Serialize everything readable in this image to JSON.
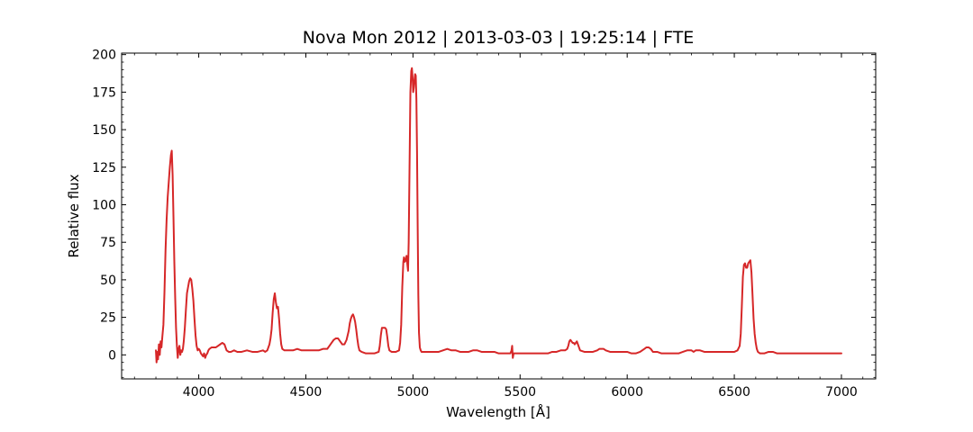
{
  "chart_data": {
    "type": "line",
    "title": "Nova Mon 2012 | 2013-03-03 | 19:25:14 | FTE",
    "xlabel": "Wavelength [Å]",
    "ylabel": "Relative flux",
    "xlim": [
      3640,
      7160
    ],
    "ylim": [
      -16,
      201
    ],
    "xticks": [
      4000,
      4500,
      5000,
      5500,
      6000,
      6500,
      7000
    ],
    "yticks": [
      0,
      25,
      50,
      75,
      100,
      125,
      150,
      175,
      200
    ],
    "x_minor_step": 100,
    "y_minor_step": 5,
    "grid": false,
    "ticks_direction": "in",
    "series": [
      {
        "color": "#d62728",
        "points": [
          [
            3800,
            3
          ],
          [
            3803,
            -5
          ],
          [
            3806,
            2
          ],
          [
            3810,
            -3
          ],
          [
            3814,
            7
          ],
          [
            3818,
            0
          ],
          [
            3822,
            9
          ],
          [
            3826,
            5
          ],
          [
            3830,
            12
          ],
          [
            3835,
            20
          ],
          [
            3840,
            42
          ],
          [
            3845,
            70
          ],
          [
            3850,
            90
          ],
          [
            3855,
            105
          ],
          [
            3860,
            115
          ],
          [
            3865,
            125
          ],
          [
            3870,
            133
          ],
          [
            3874,
            136
          ],
          [
            3878,
            120
          ],
          [
            3882,
            92
          ],
          [
            3886,
            62
          ],
          [
            3890,
            38
          ],
          [
            3894,
            18
          ],
          [
            3898,
            6
          ],
          [
            3902,
            -2
          ],
          [
            3906,
            4
          ],
          [
            3910,
            6
          ],
          [
            3914,
            0
          ],
          [
            3918,
            3
          ],
          [
            3922,
            2
          ],
          [
            3926,
            4
          ],
          [
            3930,
            9
          ],
          [
            3935,
            18
          ],
          [
            3940,
            30
          ],
          [
            3945,
            41
          ],
          [
            3950,
            45
          ],
          [
            3955,
            49
          ],
          [
            3960,
            51
          ],
          [
            3965,
            50
          ],
          [
            3970,
            44
          ],
          [
            3975,
            36
          ],
          [
            3980,
            24
          ],
          [
            3985,
            13
          ],
          [
            3990,
            6
          ],
          [
            3995,
            3
          ],
          [
            4000,
            4
          ],
          [
            4005,
            3
          ],
          [
            4010,
            1
          ],
          [
            4015,
            0
          ],
          [
            4020,
            -1
          ],
          [
            4025,
            1
          ],
          [
            4030,
            -2
          ],
          [
            4035,
            0
          ],
          [
            4040,
            1
          ],
          [
            4045,
            3
          ],
          [
            4050,
            4
          ],
          [
            4060,
            5
          ],
          [
            4070,
            5
          ],
          [
            4080,
            5
          ],
          [
            4090,
            6
          ],
          [
            4100,
            7
          ],
          [
            4110,
            8
          ],
          [
            4120,
            7
          ],
          [
            4130,
            3
          ],
          [
            4140,
            2
          ],
          [
            4150,
            2
          ],
          [
            4165,
            3
          ],
          [
            4180,
            2
          ],
          [
            4200,
            2
          ],
          [
            4225,
            3
          ],
          [
            4250,
            2
          ],
          [
            4275,
            2
          ],
          [
            4300,
            3
          ],
          [
            4310,
            2
          ],
          [
            4320,
            3
          ],
          [
            4330,
            7
          ],
          [
            4335,
            11
          ],
          [
            4340,
            17
          ],
          [
            4345,
            28
          ],
          [
            4350,
            37
          ],
          [
            4355,
            41
          ],
          [
            4360,
            35
          ],
          [
            4365,
            31
          ],
          [
            4370,
            32
          ],
          [
            4375,
            24
          ],
          [
            4380,
            14
          ],
          [
            4385,
            7
          ],
          [
            4390,
            4
          ],
          [
            4400,
            3
          ],
          [
            4420,
            3
          ],
          [
            4440,
            3
          ],
          [
            4460,
            4
          ],
          [
            4480,
            3
          ],
          [
            4500,
            3
          ],
          [
            4520,
            3
          ],
          [
            4540,
            3
          ],
          [
            4560,
            3
          ],
          [
            4580,
            4
          ],
          [
            4600,
            4
          ],
          [
            4610,
            6
          ],
          [
            4620,
            8
          ],
          [
            4630,
            10
          ],
          [
            4640,
            11
          ],
          [
            4650,
            11
          ],
          [
            4660,
            9
          ],
          [
            4670,
            7
          ],
          [
            4680,
            7
          ],
          [
            4690,
            10
          ],
          [
            4700,
            16
          ],
          [
            4705,
            21
          ],
          [
            4710,
            24
          ],
          [
            4715,
            26
          ],
          [
            4720,
            27
          ],
          [
            4725,
            25
          ],
          [
            4730,
            22
          ],
          [
            4735,
            17
          ],
          [
            4740,
            11
          ],
          [
            4745,
            6
          ],
          [
            4750,
            3
          ],
          [
            4760,
            2
          ],
          [
            4780,
            1
          ],
          [
            4800,
            1
          ],
          [
            4820,
            1
          ],
          [
            4840,
            2
          ],
          [
            4845,
            6
          ],
          [
            4850,
            13
          ],
          [
            4855,
            18
          ],
          [
            4860,
            18
          ],
          [
            4870,
            18
          ],
          [
            4875,
            17
          ],
          [
            4880,
            12
          ],
          [
            4885,
            6
          ],
          [
            4890,
            3
          ],
          [
            4900,
            2
          ],
          [
            4920,
            2
          ],
          [
            4935,
            3
          ],
          [
            4940,
            8
          ],
          [
            4945,
            20
          ],
          [
            4950,
            45
          ],
          [
            4955,
            62
          ],
          [
            4958,
            65
          ],
          [
            4962,
            62
          ],
          [
            4966,
            63
          ],
          [
            4970,
            66
          ],
          [
            4974,
            60
          ],
          [
            4977,
            56
          ],
          [
            4980,
            75
          ],
          [
            4984,
            125
          ],
          [
            4988,
            175
          ],
          [
            4992,
            189
          ],
          [
            4995,
            191
          ],
          [
            4998,
            185
          ],
          [
            5001,
            175
          ],
          [
            5004,
            178
          ],
          [
            5007,
            183
          ],
          [
            5010,
            187
          ],
          [
            5013,
            186
          ],
          [
            5016,
            170
          ],
          [
            5019,
            135
          ],
          [
            5022,
            85
          ],
          [
            5025,
            40
          ],
          [
            5028,
            15
          ],
          [
            5032,
            5
          ],
          [
            5036,
            3
          ],
          [
            5040,
            2
          ],
          [
            5060,
            2
          ],
          [
            5080,
            2
          ],
          [
            5100,
            2
          ],
          [
            5120,
            2
          ],
          [
            5140,
            3
          ],
          [
            5160,
            4
          ],
          [
            5180,
            3
          ],
          [
            5200,
            3
          ],
          [
            5220,
            2
          ],
          [
            5240,
            2
          ],
          [
            5260,
            2
          ],
          [
            5280,
            3
          ],
          [
            5300,
            3
          ],
          [
            5320,
            2
          ],
          [
            5340,
            2
          ],
          [
            5360,
            2
          ],
          [
            5380,
            2
          ],
          [
            5400,
            1
          ],
          [
            5420,
            1
          ],
          [
            5440,
            1
          ],
          [
            5455,
            1
          ],
          [
            5460,
            3
          ],
          [
            5463,
            6
          ],
          [
            5466,
            -2
          ],
          [
            5470,
            1
          ],
          [
            5490,
            1
          ],
          [
            5510,
            1
          ],
          [
            5530,
            1
          ],
          [
            5550,
            1
          ],
          [
            5570,
            1
          ],
          [
            5590,
            1
          ],
          [
            5610,
            1
          ],
          [
            5630,
            1
          ],
          [
            5650,
            2
          ],
          [
            5670,
            2
          ],
          [
            5690,
            3
          ],
          [
            5710,
            3
          ],
          [
            5720,
            4
          ],
          [
            5725,
            6
          ],
          [
            5730,
            9
          ],
          [
            5735,
            10
          ],
          [
            5740,
            9
          ],
          [
            5745,
            8
          ],
          [
            5750,
            8
          ],
          [
            5755,
            7
          ],
          [
            5760,
            8
          ],
          [
            5765,
            9
          ],
          [
            5770,
            7
          ],
          [
            5775,
            5
          ],
          [
            5780,
            3
          ],
          [
            5800,
            2
          ],
          [
            5820,
            2
          ],
          [
            5840,
            2
          ],
          [
            5860,
            3
          ],
          [
            5870,
            4
          ],
          [
            5880,
            4
          ],
          [
            5890,
            4
          ],
          [
            5900,
            3
          ],
          [
            5920,
            2
          ],
          [
            5940,
            2
          ],
          [
            5960,
            2
          ],
          [
            5980,
            2
          ],
          [
            6000,
            2
          ],
          [
            6020,
            1
          ],
          [
            6040,
            1
          ],
          [
            6060,
            2
          ],
          [
            6070,
            3
          ],
          [
            6080,
            4
          ],
          [
            6090,
            5
          ],
          [
            6100,
            5
          ],
          [
            6110,
            4
          ],
          [
            6120,
            2
          ],
          [
            6140,
            2
          ],
          [
            6160,
            1
          ],
          [
            6180,
            1
          ],
          [
            6200,
            1
          ],
          [
            6220,
            1
          ],
          [
            6240,
            1
          ],
          [
            6260,
            2
          ],
          [
            6280,
            3
          ],
          [
            6300,
            3
          ],
          [
            6310,
            2
          ],
          [
            6320,
            3
          ],
          [
            6340,
            3
          ],
          [
            6360,
            2
          ],
          [
            6380,
            2
          ],
          [
            6400,
            2
          ],
          [
            6420,
            2
          ],
          [
            6440,
            2
          ],
          [
            6460,
            2
          ],
          [
            6480,
            2
          ],
          [
            6500,
            2
          ],
          [
            6515,
            3
          ],
          [
            6525,
            6
          ],
          [
            6530,
            14
          ],
          [
            6535,
            32
          ],
          [
            6540,
            52
          ],
          [
            6545,
            60
          ],
          [
            6550,
            61
          ],
          [
            6555,
            58
          ],
          [
            6560,
            58
          ],
          [
            6565,
            61
          ],
          [
            6570,
            62
          ],
          [
            6575,
            63
          ],
          [
            6580,
            55
          ],
          [
            6585,
            40
          ],
          [
            6590,
            24
          ],
          [
            6595,
            14
          ],
          [
            6600,
            8
          ],
          [
            6605,
            4
          ],
          [
            6610,
            2
          ],
          [
            6620,
            1
          ],
          [
            6640,
            1
          ],
          [
            6660,
            2
          ],
          [
            6680,
            2
          ],
          [
            6700,
            1
          ],
          [
            6720,
            1
          ],
          [
            6740,
            1
          ],
          [
            6760,
            1
          ],
          [
            6780,
            1
          ],
          [
            6800,
            1
          ],
          [
            6820,
            1
          ],
          [
            6840,
            1
          ],
          [
            6860,
            1
          ],
          [
            6880,
            1
          ],
          [
            6900,
            1
          ],
          [
            6920,
            1
          ],
          [
            6940,
            1
          ],
          [
            6960,
            1
          ],
          [
            6980,
            1
          ],
          [
            6990,
            1
          ],
          [
            7000,
            1
          ]
        ]
      }
    ]
  }
}
